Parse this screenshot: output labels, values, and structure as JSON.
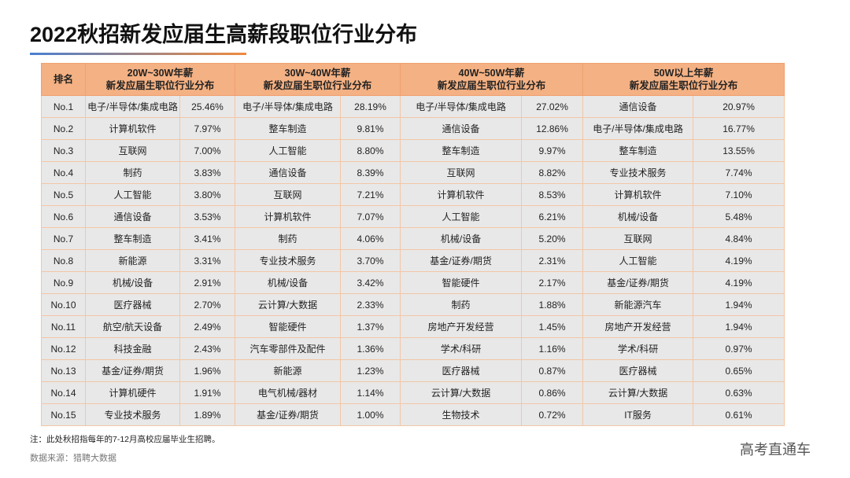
{
  "title": "2022秋招新发应届生高薪段职位行业分布",
  "table": {
    "rank_header": "排名",
    "groups": [
      [
        "20W~30W年薪",
        "新发应届生职位行业分布"
      ],
      [
        "30W~40W年薪",
        "新发应届生职位行业分布"
      ],
      [
        "40W~50W年薪",
        "新发应届生职位行业分布"
      ],
      [
        "50W以上年薪",
        "新发应届生职位行业分布"
      ]
    ],
    "rows": [
      [
        "No.1",
        "电子/半导体/集成电路",
        "25.46%",
        "电子/半导体/集成电路",
        "28.19%",
        "电子/半导体/集成电路",
        "27.02%",
        "通信设备",
        "20.97%"
      ],
      [
        "No.2",
        "计算机软件",
        "7.97%",
        "整车制造",
        "9.81%",
        "通信设备",
        "12.86%",
        "电子/半导体/集成电路",
        "16.77%"
      ],
      [
        "No.3",
        "互联网",
        "7.00%",
        "人工智能",
        "8.80%",
        "整车制造",
        "9.97%",
        "整车制造",
        "13.55%"
      ],
      [
        "No.4",
        "制药",
        "3.83%",
        "通信设备",
        "8.39%",
        "互联网",
        "8.82%",
        "专业技术服务",
        "7.74%"
      ],
      [
        "No.5",
        "人工智能",
        "3.80%",
        "互联网",
        "7.21%",
        "计算机软件",
        "8.53%",
        "计算机软件",
        "7.10%"
      ],
      [
        "No.6",
        "通信设备",
        "3.53%",
        "计算机软件",
        "7.07%",
        "人工智能",
        "6.21%",
        "机械/设备",
        "5.48%"
      ],
      [
        "No.7",
        "整车制造",
        "3.41%",
        "制药",
        "4.06%",
        "机械/设备",
        "5.20%",
        "互联网",
        "4.84%"
      ],
      [
        "No.8",
        "新能源",
        "3.31%",
        "专业技术服务",
        "3.70%",
        "基金/证券/期货",
        "2.31%",
        "人工智能",
        "4.19%"
      ],
      [
        "No.9",
        "机械/设备",
        "2.91%",
        "机械/设备",
        "3.42%",
        "智能硬件",
        "2.17%",
        "基金/证券/期货",
        "4.19%"
      ],
      [
        "No.10",
        "医疗器械",
        "2.70%",
        "云计算/大数据",
        "2.33%",
        "制药",
        "1.88%",
        "新能源汽车",
        "1.94%"
      ],
      [
        "No.11",
        "航空/航天设备",
        "2.49%",
        "智能硬件",
        "1.37%",
        "房地产开发经营",
        "1.45%",
        "房地产开发经营",
        "1.94%"
      ],
      [
        "No.12",
        "科技金融",
        "2.43%",
        "汽车零部件及配件",
        "1.36%",
        "学术/科研",
        "1.16%",
        "学术/科研",
        "0.97%"
      ],
      [
        "No.13",
        "基金/证券/期货",
        "1.96%",
        "新能源",
        "1.23%",
        "医疗器械",
        "0.87%",
        "医疗器械",
        "0.65%"
      ],
      [
        "No.14",
        "计算机硬件",
        "1.91%",
        "电气机械/器材",
        "1.14%",
        "云计算/大数据",
        "0.86%",
        "云计算/大数据",
        "0.63%"
      ],
      [
        "No.15",
        "专业技术服务",
        "1.89%",
        "基金/证券/期货",
        "1.00%",
        "生物技术",
        "0.72%",
        "IT服务",
        "0.61%"
      ]
    ]
  },
  "note": "注：此处秋招指每年的7-12月高校应届毕业生招聘。",
  "source": "数据来源：猎聘大数据",
  "watermark": "高考直通车"
}
